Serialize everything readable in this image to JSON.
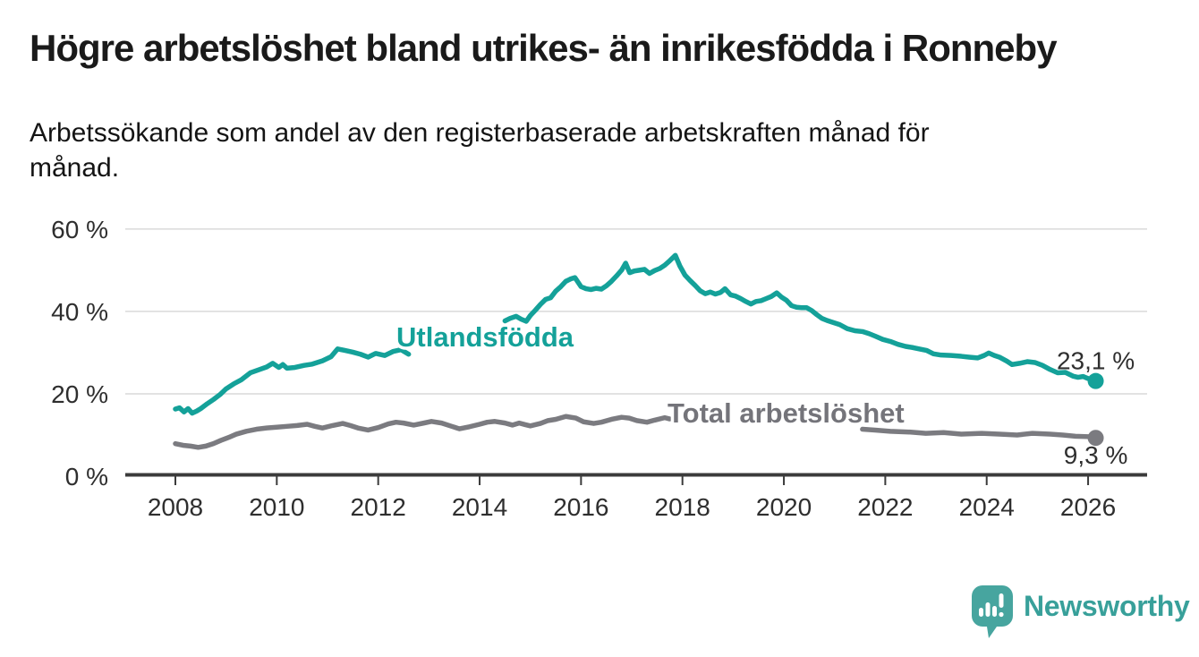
{
  "header": {
    "title": "Högre arbetslöshet bland utrikes- än inrikesfödda i Ronneby",
    "subtitle_line1": "Arbetssökande som andel av den registerbaserade arbetskraften månad för",
    "subtitle_line2": "månad."
  },
  "logo": {
    "text": "Newsworthy",
    "icon": "newsworthy-speech-bubble-bar-chart-icon",
    "text_color": "#38a09a",
    "bubble_color": "#47a59f"
  },
  "colors": {
    "background": "#ffffff",
    "grid": "#d9d9d9",
    "axis": "#3b3b3b",
    "tick_text": "#2e2e2e",
    "teal_series": "#14a199",
    "gray_series": "#7b7b80",
    "gray_label": "#74747a"
  },
  "chart_data": {
    "type": "line",
    "title": "Högre arbetslöshet bland utrikes- än inrikesfödda i Ronneby",
    "subtitle": "Arbetssökande som andel av den registerbaserade arbetskraften månad för månad.",
    "unit": "%",
    "grid": "horizontal-on",
    "legend_position": "inline-labels-on-lines",
    "x_axis": {
      "ticks": [
        2008,
        2010,
        2012,
        2014,
        2016,
        2018,
        2020,
        2022,
        2024,
        2026
      ],
      "range": [
        2007.0,
        2027.2
      ]
    },
    "y_axis": {
      "tick_values": [
        0,
        20,
        40,
        60
      ],
      "tick_labels": [
        "0 %",
        "20 %",
        "40 %",
        "60 %"
      ],
      "gridline_values": [
        20,
        40,
        60
      ],
      "range": [
        0,
        62
      ]
    },
    "series": [
      {
        "name": "Utlandsfödda",
        "color": "#14a199",
        "end_label": "23,1 %",
        "end_value": 23.1,
        "segments": [
          [
            [
              2008.0,
              16.3
            ],
            [
              2008.08,
              16.6
            ],
            [
              2008.17,
              15.6
            ],
            [
              2008.25,
              16.4
            ],
            [
              2008.33,
              15.3
            ],
            [
              2008.42,
              15.8
            ],
            [
              2008.5,
              16.4
            ],
            [
              2008.63,
              17.6
            ],
            [
              2008.75,
              18.6
            ],
            [
              2008.88,
              19.8
            ],
            [
              2009.0,
              21.2
            ],
            [
              2009.15,
              22.4
            ],
            [
              2009.3,
              23.4
            ],
            [
              2009.48,
              25.1
            ],
            [
              2009.66,
              25.9
            ],
            [
              2009.8,
              26.5
            ],
            [
              2009.92,
              27.4
            ],
            [
              2010.04,
              26.4
            ],
            [
              2010.12,
              27.1
            ],
            [
              2010.2,
              26.2
            ],
            [
              2010.36,
              26.4
            ],
            [
              2010.54,
              26.9
            ],
            [
              2010.7,
              27.2
            ],
            [
              2010.9,
              28.0
            ],
            [
              2011.07,
              29.0
            ],
            [
              2011.2,
              30.9
            ],
            [
              2011.35,
              30.5
            ],
            [
              2011.5,
              30.1
            ],
            [
              2011.65,
              29.6
            ],
            [
              2011.8,
              28.9
            ],
            [
              2011.95,
              29.8
            ],
            [
              2012.13,
              29.3
            ],
            [
              2012.3,
              30.3
            ],
            [
              2012.45,
              30.7
            ],
            [
              2012.6,
              29.6
            ]
          ],
          [
            [
              2014.5,
              37.7
            ],
            [
              2014.6,
              38.3
            ],
            [
              2014.72,
              38.8
            ],
            [
              2014.82,
              38.1
            ],
            [
              2014.92,
              37.6
            ],
            [
              2015.0,
              39.0
            ],
            [
              2015.1,
              40.3
            ],
            [
              2015.2,
              41.7
            ],
            [
              2015.3,
              42.9
            ],
            [
              2015.4,
              43.3
            ],
            [
              2015.5,
              44.9
            ],
            [
              2015.6,
              46.0
            ],
            [
              2015.7,
              47.3
            ],
            [
              2015.8,
              47.9
            ],
            [
              2015.88,
              48.2
            ],
            [
              2016.0,
              46.0
            ],
            [
              2016.1,
              45.5
            ],
            [
              2016.2,
              45.3
            ],
            [
              2016.3,
              45.6
            ],
            [
              2016.4,
              45.4
            ],
            [
              2016.5,
              46.2
            ],
            [
              2016.6,
              47.3
            ],
            [
              2016.7,
              48.6
            ],
            [
              2016.8,
              50.0
            ],
            [
              2016.88,
              51.7
            ],
            [
              2016.96,
              49.4
            ],
            [
              2017.05,
              49.8
            ],
            [
              2017.15,
              50.0
            ],
            [
              2017.25,
              50.2
            ],
            [
              2017.35,
              49.2
            ],
            [
              2017.45,
              49.9
            ],
            [
              2017.55,
              50.4
            ],
            [
              2017.65,
              51.2
            ],
            [
              2017.75,
              52.3
            ],
            [
              2017.86,
              53.6
            ],
            [
              2017.95,
              51.0
            ],
            [
              2018.05,
              48.8
            ],
            [
              2018.15,
              47.5
            ],
            [
              2018.25,
              46.3
            ],
            [
              2018.35,
              45.0
            ],
            [
              2018.45,
              44.3
            ],
            [
              2018.55,
              44.7
            ],
            [
              2018.65,
              44.2
            ],
            [
              2018.75,
              44.6
            ],
            [
              2018.84,
              45.5
            ],
            [
              2018.95,
              44.0
            ],
            [
              2019.05,
              43.7
            ],
            [
              2019.15,
              43.1
            ],
            [
              2019.25,
              42.4
            ],
            [
              2019.35,
              41.8
            ],
            [
              2019.45,
              42.4
            ],
            [
              2019.55,
              42.6
            ],
            [
              2019.65,
              43.1
            ],
            [
              2019.75,
              43.6
            ],
            [
              2019.86,
              44.5
            ],
            [
              2019.95,
              43.5
            ],
            [
              2020.05,
              42.7
            ],
            [
              2020.15,
              41.4
            ],
            [
              2020.25,
              41.0
            ],
            [
              2020.35,
              40.9
            ],
            [
              2020.45,
              40.9
            ],
            [
              2020.55,
              40.2
            ],
            [
              2020.65,
              39.2
            ],
            [
              2020.75,
              38.3
            ],
            [
              2020.85,
              37.8
            ],
            [
              2020.95,
              37.4
            ],
            [
              2021.1,
              36.8
            ],
            [
              2021.25,
              35.8
            ],
            [
              2021.4,
              35.3
            ],
            [
              2021.55,
              35.1
            ],
            [
              2021.68,
              34.6
            ],
            [
              2021.8,
              34.0
            ],
            [
              2021.95,
              33.2
            ],
            [
              2022.1,
              32.7
            ],
            [
              2022.25,
              32.0
            ],
            [
              2022.4,
              31.5
            ],
            [
              2022.55,
              31.2
            ],
            [
              2022.7,
              30.8
            ],
            [
              2022.82,
              30.5
            ],
            [
              2022.95,
              29.7
            ],
            [
              2023.1,
              29.4
            ],
            [
              2023.3,
              29.3
            ],
            [
              2023.5,
              29.1
            ],
            [
              2023.65,
              28.9
            ],
            [
              2023.82,
              28.7
            ],
            [
              2023.95,
              29.3
            ],
            [
              2024.04,
              29.9
            ],
            [
              2024.15,
              29.3
            ],
            [
              2024.25,
              28.9
            ],
            [
              2024.4,
              27.9
            ],
            [
              2024.5,
              27.1
            ],
            [
              2024.65,
              27.4
            ],
            [
              2024.8,
              27.8
            ],
            [
              2024.95,
              27.6
            ],
            [
              2025.1,
              26.9
            ],
            [
              2025.25,
              25.9
            ],
            [
              2025.4,
              25.1
            ],
            [
              2025.55,
              25.2
            ],
            [
              2025.7,
              24.3
            ],
            [
              2025.8,
              24.0
            ],
            [
              2025.9,
              24.2
            ],
            [
              2026.0,
              23.7
            ],
            [
              2026.15,
              23.1
            ]
          ]
        ]
      },
      {
        "name": "Total arbetslöshet",
        "color": "#7b7b80",
        "end_label": "9,3 %",
        "end_value": 9.3,
        "segments": [
          [
            [
              2008.0,
              7.9
            ],
            [
              2008.15,
              7.5
            ],
            [
              2008.3,
              7.3
            ],
            [
              2008.45,
              7.0
            ],
            [
              2008.6,
              7.3
            ],
            [
              2008.75,
              7.9
            ],
            [
              2008.9,
              8.7
            ],
            [
              2009.05,
              9.4
            ],
            [
              2009.2,
              10.2
            ],
            [
              2009.4,
              10.9
            ],
            [
              2009.6,
              11.4
            ],
            [
              2009.8,
              11.7
            ],
            [
              2010.0,
              11.9
            ],
            [
              2010.2,
              12.1
            ],
            [
              2010.4,
              12.3
            ],
            [
              2010.6,
              12.6
            ],
            [
              2010.75,
              12.1
            ],
            [
              2010.9,
              11.7
            ],
            [
              2011.1,
              12.3
            ],
            [
              2011.3,
              12.8
            ],
            [
              2011.45,
              12.3
            ],
            [
              2011.6,
              11.7
            ],
            [
              2011.8,
              11.2
            ],
            [
              2012.0,
              11.8
            ],
            [
              2012.2,
              12.7
            ],
            [
              2012.35,
              13.1
            ],
            [
              2012.5,
              12.9
            ],
            [
              2012.7,
              12.4
            ],
            [
              2012.9,
              12.9
            ],
            [
              2013.05,
              13.3
            ],
            [
              2013.25,
              12.9
            ],
            [
              2013.45,
              12.1
            ],
            [
              2013.6,
              11.5
            ],
            [
              2013.8,
              12.0
            ],
            [
              2014.0,
              12.6
            ],
            [
              2014.15,
              13.1
            ],
            [
              2014.3,
              13.3
            ],
            [
              2014.5,
              12.9
            ],
            [
              2014.65,
              12.4
            ],
            [
              2014.78,
              12.9
            ],
            [
              2014.9,
              12.5
            ],
            [
              2015.0,
              12.2
            ],
            [
              2015.2,
              12.8
            ],
            [
              2015.35,
              13.5
            ],
            [
              2015.5,
              13.8
            ],
            [
              2015.7,
              14.5
            ],
            [
              2015.9,
              14.1
            ],
            [
              2016.05,
              13.2
            ],
            [
              2016.25,
              12.8
            ],
            [
              2016.4,
              13.1
            ],
            [
              2016.6,
              13.8
            ],
            [
              2016.8,
              14.3
            ],
            [
              2016.95,
              14.1
            ],
            [
              2017.1,
              13.5
            ],
            [
              2017.3,
              13.1
            ],
            [
              2017.45,
              13.6
            ],
            [
              2017.65,
              14.2
            ],
            [
              2017.75,
              13.9
            ]
          ],
          [
            [
              2021.55,
              11.4
            ],
            [
              2021.8,
              11.2
            ],
            [
              2022.1,
              10.9
            ],
            [
              2022.5,
              10.7
            ],
            [
              2022.8,
              10.4
            ],
            [
              2023.15,
              10.6
            ],
            [
              2023.5,
              10.2
            ],
            [
              2023.9,
              10.4
            ],
            [
              2024.25,
              10.2
            ],
            [
              2024.6,
              10.0
            ],
            [
              2024.9,
              10.4
            ],
            [
              2025.25,
              10.2
            ],
            [
              2025.5,
              10.0
            ],
            [
              2025.75,
              9.7
            ],
            [
              2026.0,
              9.6
            ],
            [
              2026.15,
              9.3
            ]
          ]
        ]
      }
    ]
  }
}
